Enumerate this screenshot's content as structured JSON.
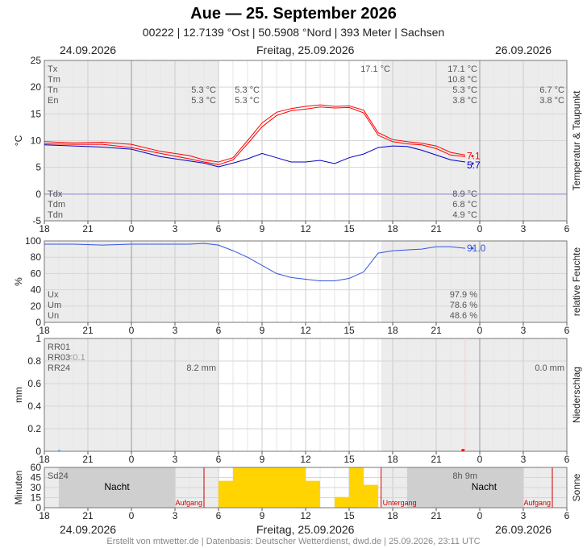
{
  "header": {
    "title": "Aue  —  25. September 2026",
    "subtitle": "00222  |  12.7139 °Ost  |  50.5908 °Nord  |  393 Meter  |  Sachsen"
  },
  "dates": {
    "prev": "24.09.2026",
    "current": "Freitag, 25.09.2026",
    "next": "26.09.2026"
  },
  "footer": "Erstellt von mtwetter.de | Datenbasis: Deutscher Wetterdienst, dwd.de | 25.09.2026, 23:11 UTC",
  "x_tick_labels": [
    "18",
    "21",
    "0",
    "3",
    "6",
    "9",
    "12",
    "15",
    "18",
    "21",
    "0",
    "3",
    "6"
  ],
  "chart_data": [
    {
      "type": "line",
      "ylabel": "°C",
      "side_label": "Temperatur & Taupunkt",
      "ylim": [
        -5,
        25
      ],
      "y_ticks": [
        -5,
        0,
        5,
        10,
        15,
        20,
        25
      ],
      "x_hours_range": [
        -6,
        30
      ],
      "legend_rows": [
        "Tx",
        "Tm",
        "Tn",
        "En"
      ],
      "legend_rows_bottom": [
        "Tdx",
        "Tdm",
        "Tdn"
      ],
      "annotations": [
        {
          "row": "Tx",
          "prev": "",
          "current": "17.1 °C",
          "day": "17.1 °C",
          "next": ""
        },
        {
          "row": "Tm",
          "prev": "",
          "current": "",
          "day": "10.8 °C",
          "next": ""
        },
        {
          "row": "Tn",
          "prev": "5.3 °C",
          "current": "5.3 °C",
          "day": "5.3 °C",
          "next": "6.7 °C"
        },
        {
          "row": "En",
          "prev": "5.3 °C",
          "current": "5.3 °C",
          "day": "3.8 °C",
          "next": "3.8 °C"
        },
        {
          "row": "Tdx",
          "day": "8.9 °C"
        },
        {
          "row": "Tdm",
          "day": "6.8 °C"
        },
        {
          "row": "Tdn",
          "day": "4.9 °C"
        }
      ],
      "last_values": {
        "temperature": "7.1",
        "dewpoint": "5.7"
      },
      "series": [
        {
          "name": "Tx",
          "color": "#ff0000",
          "x": [
            -6,
            -4,
            -2,
            0,
            2,
            4,
            5,
            6,
            7,
            8,
            9,
            10,
            11,
            12,
            13,
            14,
            15,
            16,
            17,
            18,
            19,
            20,
            21,
            22,
            23
          ],
          "values": [
            9.8,
            9.6,
            9.7,
            9.3,
            8.0,
            7.2,
            6.4,
            6.0,
            6.8,
            10,
            13.3,
            15.3,
            16.0,
            16.4,
            16.7,
            16.4,
            16.5,
            15.7,
            11.5,
            10.2,
            9.8,
            9.5,
            9.0,
            7.8,
            7.3
          ]
        },
        {
          "name": "Tm",
          "color": "#ff0000",
          "x": [
            -6,
            -4,
            -2,
            0,
            2,
            4,
            5,
            6,
            7,
            8,
            9,
            10,
            11,
            12,
            13,
            14,
            15,
            16,
            17,
            18,
            19,
            20,
            21,
            22,
            23
          ],
          "values": [
            9.4,
            9.3,
            9.3,
            8.7,
            7.6,
            6.6,
            6.0,
            5.5,
            6.4,
            9.4,
            12.6,
            14.7,
            15.6,
            15.9,
            16.3,
            16.1,
            16.2,
            15.2,
            11.0,
            9.8,
            9.4,
            9.2,
            8.5,
            7.3,
            7.0
          ]
        },
        {
          "name": "Td",
          "color": "#0000cc",
          "x": [
            -6,
            -4,
            -2,
            0,
            2,
            4,
            5,
            6,
            7,
            8,
            9,
            10,
            11,
            12,
            13,
            14,
            15,
            16,
            17,
            18,
            19,
            20,
            21,
            22,
            23
          ],
          "values": [
            9.2,
            9.0,
            8.8,
            8.4,
            7.0,
            6.2,
            5.8,
            5.1,
            5.8,
            6.6,
            7.6,
            6.8,
            6.0,
            6.0,
            6.3,
            5.7,
            6.8,
            7.5,
            8.7,
            9.0,
            8.9,
            8.2,
            7.3,
            6.4,
            6.0
          ]
        }
      ]
    },
    {
      "type": "line",
      "ylabel": "%",
      "side_label": "relative Feuchte",
      "ylim": [
        0,
        100
      ],
      "y_ticks": [
        0,
        20,
        40,
        60,
        80,
        100
      ],
      "legend_rows": [
        "Ux",
        "Um",
        "Un"
      ],
      "annotations": [
        {
          "row": "Ux",
          "day": "97.9 %"
        },
        {
          "row": "Um",
          "day": "78.6 %"
        },
        {
          "row": "Un",
          "day": "48.6 %"
        }
      ],
      "last_value": "91.0",
      "series": [
        {
          "name": "rF",
          "color": "#3355dd",
          "x": [
            -6,
            -4,
            -2,
            0,
            2,
            4,
            5,
            6,
            7,
            8,
            9,
            10,
            11,
            12,
            13,
            14,
            15,
            16,
            17,
            18,
            19,
            20,
            21,
            22,
            23
          ],
          "values": [
            96,
            96,
            95,
            96,
            96,
            96,
            97,
            95,
            88,
            80,
            70,
            60,
            55,
            53,
            51,
            51,
            54,
            62,
            85,
            88,
            89,
            90,
            93,
            93,
            91
          ]
        }
      ]
    },
    {
      "type": "bar",
      "ylabel": "mm",
      "side_label": "Niederschlag",
      "ylim": [
        0,
        1.0
      ],
      "y_ticks": [
        0.0,
        0.2,
        0.4,
        0.6,
        0.8,
        1.0
      ],
      "legend_rows": [
        "RR01",
        "RR03",
        "RR24"
      ],
      "rr03_value": "<0.1",
      "annotations": [
        {
          "row": "RR24",
          "prev": "8.2 mm",
          "next": "0.0 mm"
        }
      ],
      "series": [
        {
          "name": "RR01",
          "color": "#ff0000",
          "x": [
            22.8,
            22.9
          ],
          "values": [
            0.02,
            0.02
          ]
        },
        {
          "name": "RR03",
          "color": "#4f8fd9",
          "x": [
            -5
          ],
          "values": [
            0.01
          ]
        }
      ]
    },
    {
      "type": "bar",
      "ylabel": "Minuten",
      "side_label": "Sonne",
      "ylim": [
        0,
        60
      ],
      "y_ticks": [
        0,
        15,
        30,
        45,
        60
      ],
      "legend_rows": [
        "Sd24"
      ],
      "sum_label": "8h 9m",
      "night_label": "Nacht",
      "sunrise_label": "Aufgang",
      "sunset_label": "Untergang",
      "series": [
        {
          "name": "Sd",
          "color": "#ffd400",
          "x": [
            6,
            7,
            8,
            9,
            10,
            11,
            12,
            13,
            14,
            15,
            16,
            17
          ],
          "values": [
            40,
            60,
            60,
            60,
            60,
            60,
            40,
            0,
            16,
            60,
            34,
            0
          ]
        }
      ]
    }
  ]
}
